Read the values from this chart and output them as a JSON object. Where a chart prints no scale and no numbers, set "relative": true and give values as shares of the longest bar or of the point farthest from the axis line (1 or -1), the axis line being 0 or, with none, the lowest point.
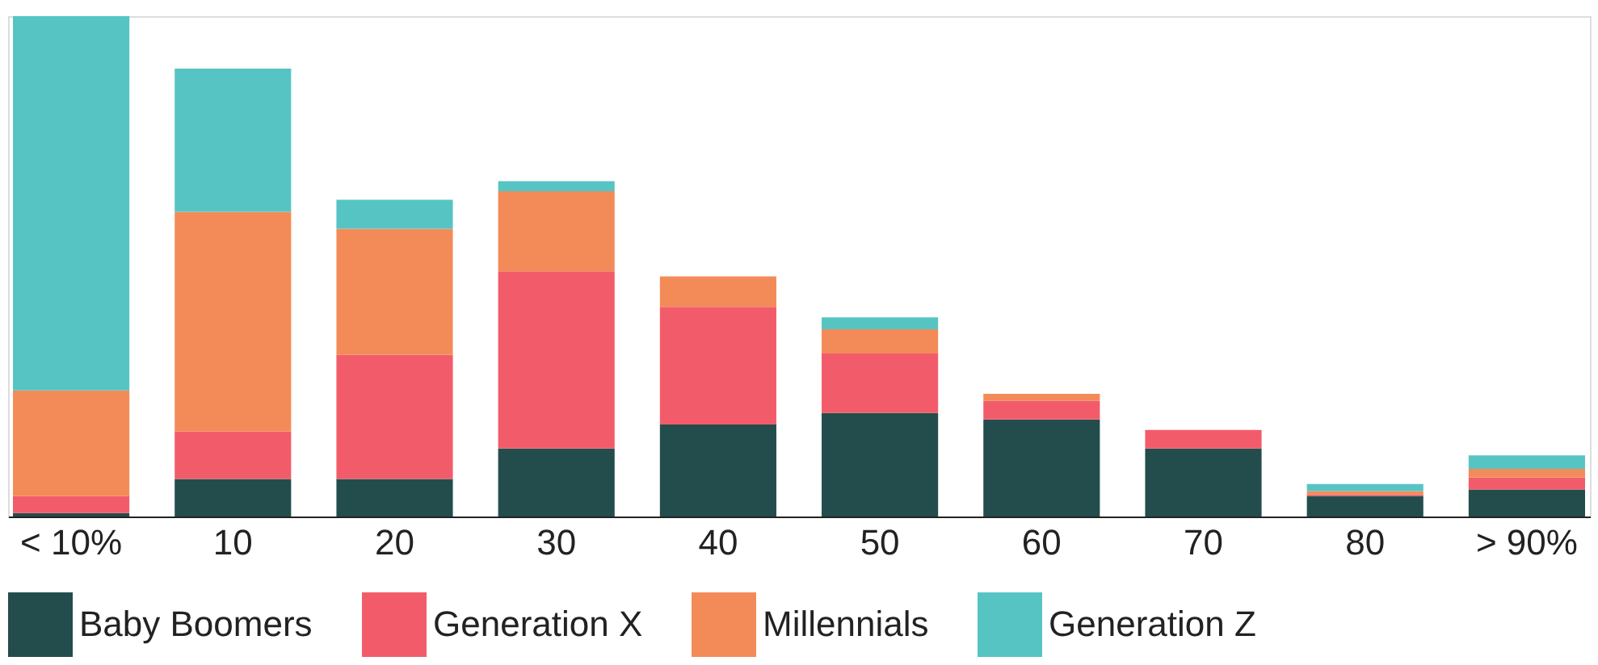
{
  "chart_data": {
    "type": "bar",
    "relative": true,
    "stacked": true,
    "legend": "bottom",
    "grid": false,
    "categories": [
      "< 10%",
      "10",
      "20",
      "30",
      "40",
      "50",
      "60",
      "70",
      "80",
      "> 90%"
    ],
    "series": [
      {
        "name": "Baby Boomers",
        "color": "#234d4c",
        "values": [
          0.007,
          0.075,
          0.075,
          0.136,
          0.184,
          0.207,
          0.194,
          0.136,
          0.041,
          0.054
        ]
      },
      {
        "name": "Generation X",
        "color": "#f25c6a",
        "values": [
          0.034,
          0.095,
          0.248,
          0.354,
          0.235,
          0.119,
          0.037,
          0.037,
          0.003,
          0.024
        ]
      },
      {
        "name": "Millennials",
        "color": "#f38b58",
        "values": [
          0.211,
          0.439,
          0.252,
          0.16,
          0.061,
          0.048,
          0.014,
          0,
          0.007,
          0.017
        ]
      },
      {
        "name": "Generation Z",
        "color": "#57c4c4",
        "values": [
          0.748,
          0.286,
          0.058,
          0.02,
          0,
          0.024,
          0,
          0,
          0.014,
          0.027
        ]
      }
    ]
  }
}
